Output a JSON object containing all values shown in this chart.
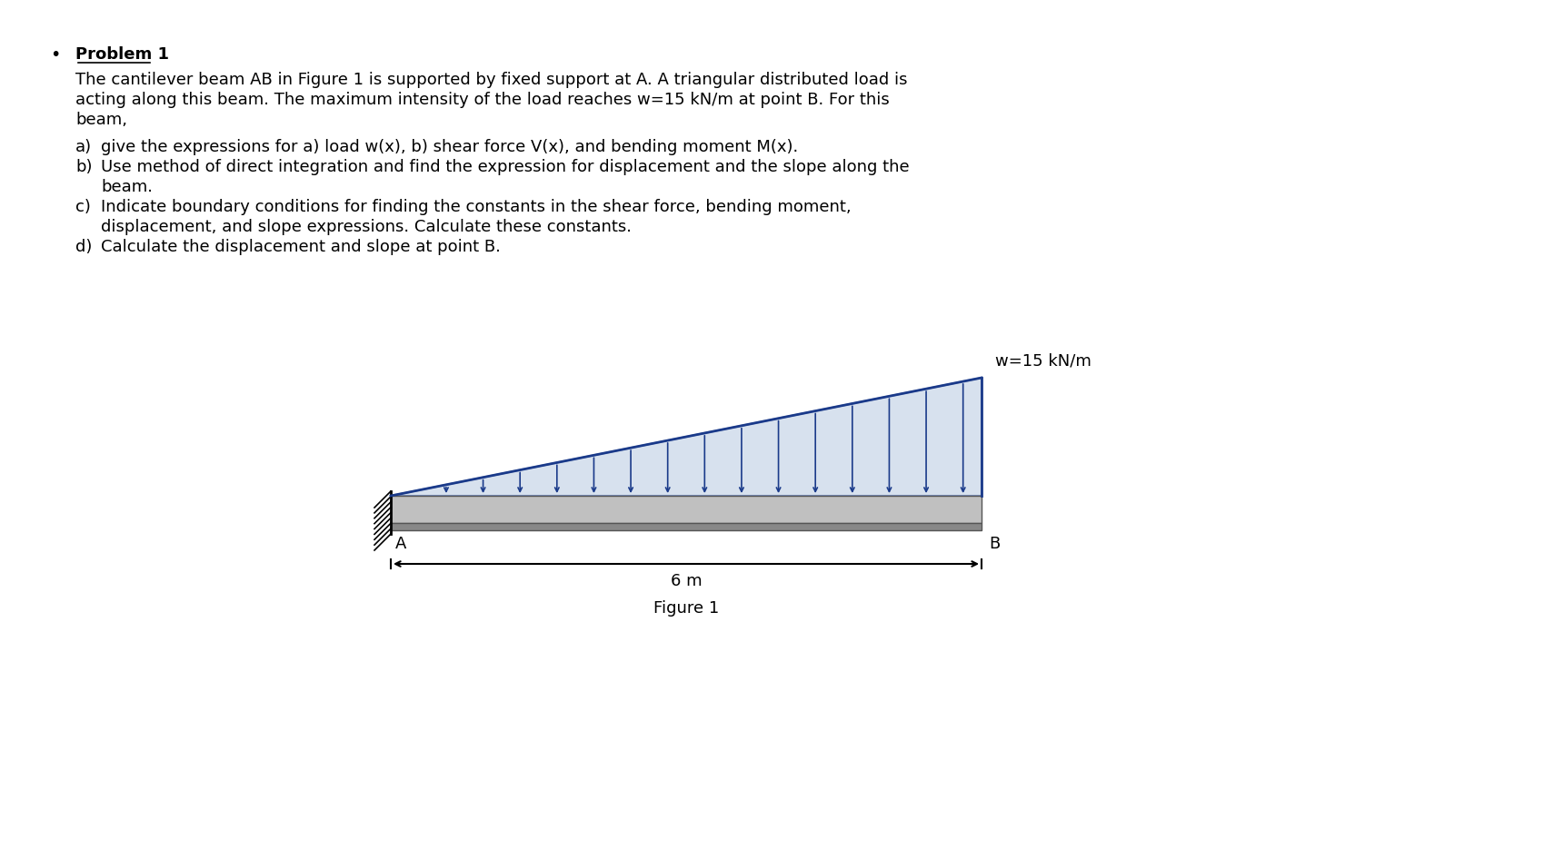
{
  "title_bullet": "Problem 1",
  "paragraph": "The cantilever beam AB in Figure 1 is supported by fixed support at A. A triangular distributed load is\nacting along this beam. The maximum intensity of the load reaches w=15 kN/m at point B. For this\nbeam,",
  "items": [
    "a)\tgive the expressions for a) load w(x), b) shear force V(x), and bending moment M(x).",
    "b)\tUse method of direct integration and find the expression for displacement and the slope along the\n\tbeam.",
    "c)\tIndicate boundary conditions for finding the constants in the shear force, bending moment,\n\tdisplacement, and slope expressions. Calculate these constants.",
    "d)\tCalculate the displacement and slope at point B."
  ],
  "beam_color": "#4a4a8a",
  "beam_fill_top": "#c8c8c8",
  "beam_fill_bottom": "#a0a0a0",
  "arrow_color": "#1a3a8a",
  "load_label": "w=15 kN/m",
  "dim_label": "6 m",
  "figure_label": "Figure 1",
  "label_A": "A",
  "label_B": "B",
  "bg_color": "#ffffff",
  "text_color": "#000000",
  "font_size_body": 13,
  "font_size_title": 13,
  "font_size_fig": 13
}
